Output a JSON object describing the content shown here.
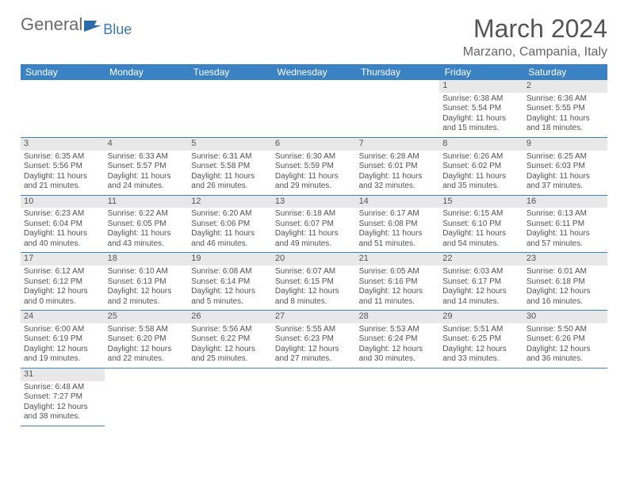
{
  "logo": {
    "general": "General",
    "blue": "Blue"
  },
  "title": "March 2024",
  "location": "Marzano, Campania, Italy",
  "colors": {
    "header_bg": "#3b82c4",
    "daynum_bg": "#e8e8e8",
    "text": "#525252"
  },
  "day_headers": [
    "Sunday",
    "Monday",
    "Tuesday",
    "Wednesday",
    "Thursday",
    "Friday",
    "Saturday"
  ],
  "weeks": [
    [
      null,
      null,
      null,
      null,
      null,
      {
        "n": "1",
        "sr": "Sunrise: 6:38 AM",
        "ss": "Sunset: 5:54 PM",
        "d1": "Daylight: 11 hours",
        "d2": "and 15 minutes."
      },
      {
        "n": "2",
        "sr": "Sunrise: 6:36 AM",
        "ss": "Sunset: 5:55 PM",
        "d1": "Daylight: 11 hours",
        "d2": "and 18 minutes."
      }
    ],
    [
      {
        "n": "3",
        "sr": "Sunrise: 6:35 AM",
        "ss": "Sunset: 5:56 PM",
        "d1": "Daylight: 11 hours",
        "d2": "and 21 minutes."
      },
      {
        "n": "4",
        "sr": "Sunrise: 6:33 AM",
        "ss": "Sunset: 5:57 PM",
        "d1": "Daylight: 11 hours",
        "d2": "and 24 minutes."
      },
      {
        "n": "5",
        "sr": "Sunrise: 6:31 AM",
        "ss": "Sunset: 5:58 PM",
        "d1": "Daylight: 11 hours",
        "d2": "and 26 minutes."
      },
      {
        "n": "6",
        "sr": "Sunrise: 6:30 AM",
        "ss": "Sunset: 5:59 PM",
        "d1": "Daylight: 11 hours",
        "d2": "and 29 minutes."
      },
      {
        "n": "7",
        "sr": "Sunrise: 6:28 AM",
        "ss": "Sunset: 6:01 PM",
        "d1": "Daylight: 11 hours",
        "d2": "and 32 minutes."
      },
      {
        "n": "8",
        "sr": "Sunrise: 6:26 AM",
        "ss": "Sunset: 6:02 PM",
        "d1": "Daylight: 11 hours",
        "d2": "and 35 minutes."
      },
      {
        "n": "9",
        "sr": "Sunrise: 6:25 AM",
        "ss": "Sunset: 6:03 PM",
        "d1": "Daylight: 11 hours",
        "d2": "and 37 minutes."
      }
    ],
    [
      {
        "n": "10",
        "sr": "Sunrise: 6:23 AM",
        "ss": "Sunset: 6:04 PM",
        "d1": "Daylight: 11 hours",
        "d2": "and 40 minutes."
      },
      {
        "n": "11",
        "sr": "Sunrise: 6:22 AM",
        "ss": "Sunset: 6:05 PM",
        "d1": "Daylight: 11 hours",
        "d2": "and 43 minutes."
      },
      {
        "n": "12",
        "sr": "Sunrise: 6:20 AM",
        "ss": "Sunset: 6:06 PM",
        "d1": "Daylight: 11 hours",
        "d2": "and 46 minutes."
      },
      {
        "n": "13",
        "sr": "Sunrise: 6:18 AM",
        "ss": "Sunset: 6:07 PM",
        "d1": "Daylight: 11 hours",
        "d2": "and 49 minutes."
      },
      {
        "n": "14",
        "sr": "Sunrise: 6:17 AM",
        "ss": "Sunset: 6:08 PM",
        "d1": "Daylight: 11 hours",
        "d2": "and 51 minutes."
      },
      {
        "n": "15",
        "sr": "Sunrise: 6:15 AM",
        "ss": "Sunset: 6:10 PM",
        "d1": "Daylight: 11 hours",
        "d2": "and 54 minutes."
      },
      {
        "n": "16",
        "sr": "Sunrise: 6:13 AM",
        "ss": "Sunset: 6:11 PM",
        "d1": "Daylight: 11 hours",
        "d2": "and 57 minutes."
      }
    ],
    [
      {
        "n": "17",
        "sr": "Sunrise: 6:12 AM",
        "ss": "Sunset: 6:12 PM",
        "d1": "Daylight: 12 hours",
        "d2": "and 0 minutes."
      },
      {
        "n": "18",
        "sr": "Sunrise: 6:10 AM",
        "ss": "Sunset: 6:13 PM",
        "d1": "Daylight: 12 hours",
        "d2": "and 2 minutes."
      },
      {
        "n": "19",
        "sr": "Sunrise: 6:08 AM",
        "ss": "Sunset: 6:14 PM",
        "d1": "Daylight: 12 hours",
        "d2": "and 5 minutes."
      },
      {
        "n": "20",
        "sr": "Sunrise: 6:07 AM",
        "ss": "Sunset: 6:15 PM",
        "d1": "Daylight: 12 hours",
        "d2": "and 8 minutes."
      },
      {
        "n": "21",
        "sr": "Sunrise: 6:05 AM",
        "ss": "Sunset: 6:16 PM",
        "d1": "Daylight: 12 hours",
        "d2": "and 11 minutes."
      },
      {
        "n": "22",
        "sr": "Sunrise: 6:03 AM",
        "ss": "Sunset: 6:17 PM",
        "d1": "Daylight: 12 hours",
        "d2": "and 14 minutes."
      },
      {
        "n": "23",
        "sr": "Sunrise: 6:01 AM",
        "ss": "Sunset: 6:18 PM",
        "d1": "Daylight: 12 hours",
        "d2": "and 16 minutes."
      }
    ],
    [
      {
        "n": "24",
        "sr": "Sunrise: 6:00 AM",
        "ss": "Sunset: 6:19 PM",
        "d1": "Daylight: 12 hours",
        "d2": "and 19 minutes."
      },
      {
        "n": "25",
        "sr": "Sunrise: 5:58 AM",
        "ss": "Sunset: 6:20 PM",
        "d1": "Daylight: 12 hours",
        "d2": "and 22 minutes."
      },
      {
        "n": "26",
        "sr": "Sunrise: 5:56 AM",
        "ss": "Sunset: 6:22 PM",
        "d1": "Daylight: 12 hours",
        "d2": "and 25 minutes."
      },
      {
        "n": "27",
        "sr": "Sunrise: 5:55 AM",
        "ss": "Sunset: 6:23 PM",
        "d1": "Daylight: 12 hours",
        "d2": "and 27 minutes."
      },
      {
        "n": "28",
        "sr": "Sunrise: 5:53 AM",
        "ss": "Sunset: 6:24 PM",
        "d1": "Daylight: 12 hours",
        "d2": "and 30 minutes."
      },
      {
        "n": "29",
        "sr": "Sunrise: 5:51 AM",
        "ss": "Sunset: 6:25 PM",
        "d1": "Daylight: 12 hours",
        "d2": "and 33 minutes."
      },
      {
        "n": "30",
        "sr": "Sunrise: 5:50 AM",
        "ss": "Sunset: 6:26 PM",
        "d1": "Daylight: 12 hours",
        "d2": "and 36 minutes."
      }
    ],
    [
      {
        "n": "31",
        "sr": "Sunrise: 6:48 AM",
        "ss": "Sunset: 7:27 PM",
        "d1": "Daylight: 12 hours",
        "d2": "and 38 minutes."
      },
      null,
      null,
      null,
      null,
      null,
      null
    ]
  ]
}
